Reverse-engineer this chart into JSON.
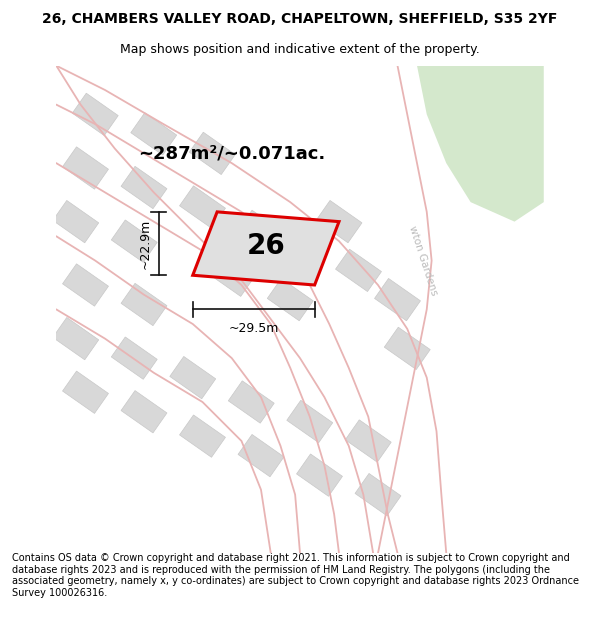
{
  "title": "26, CHAMBERS VALLEY ROAD, CHAPELTOWN, SHEFFIELD, S35 2YF",
  "subtitle": "Map shows position and indicative extent of the property.",
  "footer": "Contains OS data © Crown copyright and database right 2021. This information is subject to Crown copyright and database rights 2023 and is reproduced with the permission of HM Land Registry. The polygons (including the associated geometry, namely x, y co-ordinates) are subject to Crown copyright and database rights 2023 Ordnance Survey 100026316.",
  "area_text": "~287m²/~0.071ac.",
  "width_text": "~29.5m",
  "height_text": "~22.9m",
  "number_text": "26",
  "map_bg": "#eeecec",
  "road_color": "#e8b4b4",
  "building_fill": "#d8d8d8",
  "building_edge": "#c8c8c8",
  "highlight_fill": "#e0e0e0",
  "highlight_edge": "#dd0000",
  "green_area": "#d4e8cc",
  "arrow_color": "#111111",
  "title_fontsize": 10,
  "subtitle_fontsize": 9,
  "footer_fontsize": 7,
  "road_label_color": "#bbbbbb"
}
